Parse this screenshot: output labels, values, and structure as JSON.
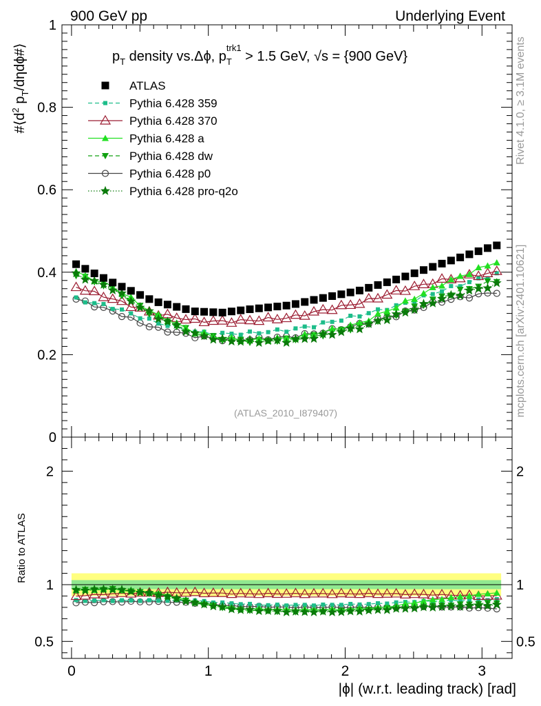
{
  "header": {
    "left": "900 GeV pp",
    "right": "Underlying Event"
  },
  "side_labels": {
    "rivet": "Rivet 4.1.0, ≥ 3.1M events",
    "mcplots": "mcplots.cern.ch [arXiv:2401.10621]"
  },
  "watermark": "(ATLAS_2010_I879407)",
  "colors": {
    "ATLAS": "#000000",
    "359": "#1dbd8a",
    "370": "#9b1b30",
    "a": "#22e022",
    "dw": "#10a010",
    "p0": "#444444",
    "pro-q2o": "#0a7a0a",
    "band_outer": "#ffff80",
    "band_inner": "#90e890"
  },
  "chart_data": [
    {
      "type": "scatter",
      "panel": "main",
      "title": "p_T density vs.Δϕ, p_T^trk1 > 1.5 GeV, √s = {900 GeV}",
      "title_parts": {
        "a": "p",
        "a_sub": "T",
        "b": " density vs.Δϕ, p",
        "b_sub": "T",
        "b_sup": "trk1",
        "c": " > 1.5 GeV, ",
        "d": "√s",
        "e": " = {900 GeV}"
      },
      "ylabel": "#⟨d² p_T/dηdϕ#⟩",
      "ylabel_parts": {
        "a": "#⟨d",
        "a_sup": "2",
        "b": " p",
        "b_sub": "T",
        "c": "/dηdϕ#⟩"
      },
      "xlim": [
        -0.07,
        3.22
      ],
      "ylim": [
        0,
        1.0
      ],
      "yticks": [
        0,
        0.2,
        0.4,
        0.6,
        0.8,
        1
      ],
      "ytick_labels": [
        "0",
        "0.2",
        "0.4",
        "0.6",
        "0.8",
        "1"
      ],
      "legend_position": "top-left",
      "series": [
        {
          "name": "ATLAS",
          "knots": [
            [
              0.03,
              0.42
            ],
            [
              0.3,
              0.375
            ],
            [
              0.6,
              0.33
            ],
            [
              0.9,
              0.305
            ],
            [
              1.1,
              0.302
            ],
            [
              1.3,
              0.31
            ],
            [
              1.6,
              0.32
            ],
            [
              1.8,
              0.335
            ],
            [
              2.1,
              0.355
            ],
            [
              2.4,
              0.385
            ],
            [
              2.7,
              0.42
            ],
            [
              3.1,
              0.465
            ]
          ]
        },
        {
          "name": "Pythia 6.428 359",
          "knots": [
            [
              0.03,
              0.335
            ],
            [
              0.3,
              0.315
            ],
            [
              0.6,
              0.28
            ],
            [
              0.9,
              0.255
            ],
            [
              1.1,
              0.25
            ],
            [
              1.3,
              0.252
            ],
            [
              1.6,
              0.26
            ],
            [
              1.8,
              0.272
            ],
            [
              2.1,
              0.295
            ],
            [
              2.4,
              0.32
            ],
            [
              2.7,
              0.355
            ],
            [
              3.1,
              0.395
            ]
          ]
        },
        {
          "name": "Pythia 6.428 370",
          "knots": [
            [
              0.03,
              0.365
            ],
            [
              0.3,
              0.335
            ],
            [
              0.6,
              0.3
            ],
            [
              0.9,
              0.283
            ],
            [
              1.1,
              0.28
            ],
            [
              1.3,
              0.283
            ],
            [
              1.6,
              0.29
            ],
            [
              1.8,
              0.305
            ],
            [
              2.1,
              0.325
            ],
            [
              2.4,
              0.355
            ],
            [
              2.7,
              0.38
            ],
            [
              3.1,
              0.4
            ]
          ]
        },
        {
          "name": "Pythia 6.428 a",
          "knots": [
            [
              0.03,
              0.4
            ],
            [
              0.3,
              0.365
            ],
            [
              0.6,
              0.3
            ],
            [
              0.9,
              0.255
            ],
            [
              1.1,
              0.24
            ],
            [
              1.3,
              0.235
            ],
            [
              1.6,
              0.24
            ],
            [
              1.8,
              0.252
            ],
            [
              2.1,
              0.275
            ],
            [
              2.4,
              0.32
            ],
            [
              2.7,
              0.37
            ],
            [
              3.1,
              0.425
            ]
          ]
        },
        {
          "name": "Pythia 6.428 dw",
          "knots": [
            [
              0.03,
              0.395
            ],
            [
              0.3,
              0.36
            ],
            [
              0.6,
              0.295
            ],
            [
              0.9,
              0.252
            ],
            [
              1.1,
              0.237
            ],
            [
              1.3,
              0.233
            ],
            [
              1.6,
              0.236
            ],
            [
              1.8,
              0.246
            ],
            [
              2.1,
              0.268
            ],
            [
              2.4,
              0.3
            ],
            [
              2.7,
              0.34
            ],
            [
              3.1,
              0.38
            ]
          ]
        },
        {
          "name": "Pythia 6.428 p0",
          "knots": [
            [
              0.03,
              0.335
            ],
            [
              0.3,
              0.305
            ],
            [
              0.6,
              0.265
            ],
            [
              0.9,
              0.245
            ],
            [
              1.1,
              0.237
            ],
            [
              1.3,
              0.237
            ],
            [
              1.6,
              0.243
            ],
            [
              1.8,
              0.252
            ],
            [
              2.1,
              0.272
            ],
            [
              2.4,
              0.298
            ],
            [
              2.7,
              0.33
            ],
            [
              3.1,
              0.352
            ]
          ]
        },
        {
          "name": "Pythia 6.428 pro-q2o",
          "knots": [
            [
              0.03,
              0.395
            ],
            [
              0.3,
              0.36
            ],
            [
              0.6,
              0.295
            ],
            [
              0.9,
              0.25
            ],
            [
              1.1,
              0.235
            ],
            [
              1.3,
              0.232
            ],
            [
              1.6,
              0.233
            ],
            [
              1.8,
              0.243
            ],
            [
              2.1,
              0.265
            ],
            [
              2.4,
              0.298
            ],
            [
              2.7,
              0.335
            ],
            [
              3.1,
              0.37
            ]
          ]
        }
      ]
    },
    {
      "type": "scatter",
      "panel": "ratio",
      "ylabel": "Ratio to ATLAS",
      "xlabel": "|ϕ| (w.r.t. leading track) [rad]",
      "xlim": [
        -0.07,
        3.22
      ],
      "ylim": [
        0.35,
        2.3
      ],
      "xticks": [
        0,
        1,
        2,
        3
      ],
      "xtick_labels": [
        "0",
        "1",
        "2",
        "3"
      ],
      "yticks": [
        0.5,
        1,
        2
      ],
      "ytick_labels": [
        "0.5",
        "1",
        "2"
      ],
      "band_outer": [
        0.9,
        1.1
      ],
      "band_inner": [
        0.96,
        1.04
      ],
      "series": [
        {
          "name": "Pythia 6.428 359",
          "knots": [
            [
              0.03,
              0.86
            ],
            [
              0.3,
              0.86
            ],
            [
              0.6,
              0.86
            ],
            [
              0.9,
              0.86
            ],
            [
              1.1,
              0.84
            ],
            [
              1.4,
              0.82
            ],
            [
              1.8,
              0.82
            ],
            [
              2.2,
              0.83
            ],
            [
              2.5,
              0.85
            ],
            [
              3.1,
              0.87
            ]
          ]
        },
        {
          "name": "Pythia 6.428 370",
          "knots": [
            [
              0.03,
              0.9
            ],
            [
              0.3,
              0.92
            ],
            [
              0.6,
              0.93
            ],
            [
              0.9,
              0.93
            ],
            [
              1.2,
              0.92
            ],
            [
              1.6,
              0.92
            ],
            [
              2.0,
              0.92
            ],
            [
              2.3,
              0.92
            ],
            [
              2.7,
              0.91
            ],
            [
              3.1,
              0.9
            ]
          ]
        },
        {
          "name": "Pythia 6.428 a",
          "knots": [
            [
              0.03,
              0.95
            ],
            [
              0.3,
              0.96
            ],
            [
              0.6,
              0.93
            ],
            [
              0.9,
              0.85
            ],
            [
              1.2,
              0.79
            ],
            [
              1.6,
              0.78
            ],
            [
              2.0,
              0.78
            ],
            [
              2.3,
              0.8
            ],
            [
              2.6,
              0.86
            ],
            [
              3.1,
              0.93
            ]
          ]
        },
        {
          "name": "Pythia 6.428 dw",
          "knots": [
            [
              0.03,
              0.95
            ],
            [
              0.3,
              0.96
            ],
            [
              0.6,
              0.92
            ],
            [
              0.9,
              0.84
            ],
            [
              1.2,
              0.78
            ],
            [
              1.6,
              0.76
            ],
            [
              2.0,
              0.77
            ],
            [
              2.3,
              0.79
            ],
            [
              2.6,
              0.81
            ],
            [
              3.1,
              0.84
            ]
          ]
        },
        {
          "name": "Pythia 6.428 p0",
          "knots": [
            [
              0.03,
              0.84
            ],
            [
              0.3,
              0.85
            ],
            [
              0.6,
              0.85
            ],
            [
              0.9,
              0.84
            ],
            [
              1.2,
              0.81
            ],
            [
              1.6,
              0.8
            ],
            [
              2.0,
              0.8
            ],
            [
              2.3,
              0.8
            ],
            [
              2.6,
              0.81
            ],
            [
              3.1,
              0.79
            ]
          ]
        },
        {
          "name": "Pythia 6.428 pro-q2o",
          "knots": [
            [
              0.03,
              0.95
            ],
            [
              0.3,
              0.96
            ],
            [
              0.6,
              0.92
            ],
            [
              0.9,
              0.84
            ],
            [
              1.2,
              0.78
            ],
            [
              1.6,
              0.76
            ],
            [
              2.0,
              0.76
            ],
            [
              2.3,
              0.78
            ],
            [
              2.6,
              0.8
            ],
            [
              3.1,
              0.82
            ]
          ]
        }
      ]
    }
  ]
}
